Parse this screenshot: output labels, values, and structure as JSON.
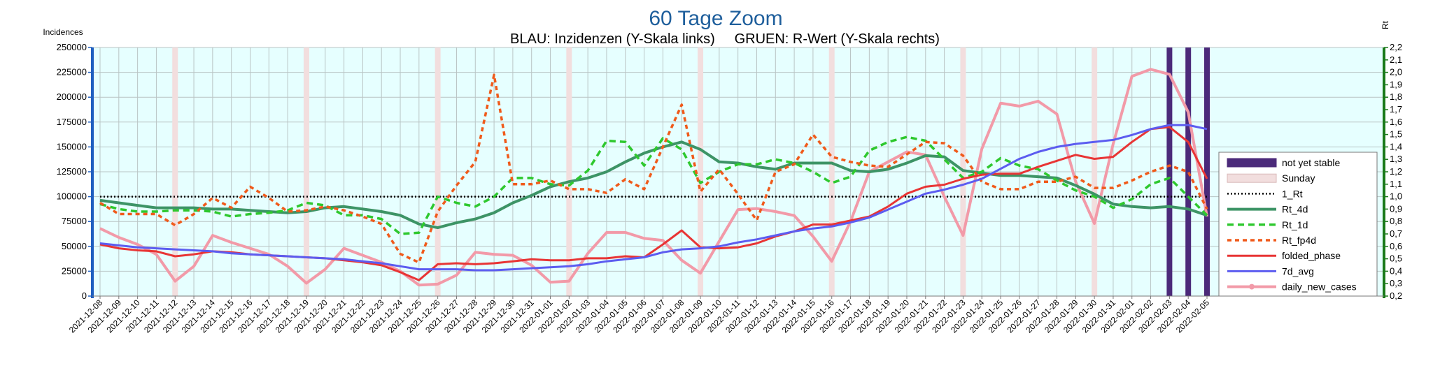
{
  "chart_data": {
    "type": "line",
    "title": "60 Tage Zoom",
    "subtitle": "BLAU: Inzidenzen (Y-Skala links)     GRUEN: R-Wert (Y-Skala rechts)",
    "ylabel_left": "Incidences",
    "ylabel_right": "Rt",
    "ylim_left": [
      0,
      250000
    ],
    "ylim_right": [
      0.2,
      2.2
    ],
    "left_ticks": [
      "0",
      "25000",
      "50000",
      "75000",
      "100000",
      "125000",
      "150000",
      "175000",
      "200000",
      "225000",
      "250000"
    ],
    "right_ticks": [
      "0,2",
      "0,3",
      "0,4",
      "0,5",
      "0,6",
      "0,7",
      "0,8",
      "0,9",
      "1,0",
      "1,1",
      "1,2",
      "1,3",
      "1,4",
      "1,5",
      "1,6",
      "1,7",
      "1,8",
      "1,9",
      "2,0",
      "2,1",
      "2,2"
    ],
    "grid": true,
    "legend_position": "right",
    "x": [
      "2021-12-08",
      "2021-12-09",
      "2021-12-10",
      "2021-12-11",
      "2021-12-12",
      "2021-12-13",
      "2021-12-14",
      "2021-12-15",
      "2021-12-16",
      "2021-12-17",
      "2021-12-18",
      "2021-12-19",
      "2021-12-20",
      "2021-12-21",
      "2021-12-22",
      "2021-12-23",
      "2021-12-24",
      "2021-12-25",
      "2021-12-26",
      "2021-12-27",
      "2021-12-28",
      "2021-12-29",
      "2021-12-30",
      "2021-12-31",
      "2022-01-01",
      "2022-01-02",
      "2022-01-03",
      "2022-01-04",
      "2022-01-05",
      "2022-01-06",
      "2022-01-07",
      "2022-01-08",
      "2022-01-09",
      "2022-01-10",
      "2022-01-11",
      "2022-01-12",
      "2022-01-13",
      "2022-01-14",
      "2022-01-15",
      "2022-01-16",
      "2022-01-17",
      "2022-01-18",
      "2022-01-19",
      "2022-01-20",
      "2022-01-21",
      "2022-01-22",
      "2022-01-23",
      "2022-01-24",
      "2022-01-25",
      "2022-01-26",
      "2022-01-27",
      "2022-01-28",
      "2022-01-29",
      "2022-01-30",
      "2022-01-31",
      "2022-02-01",
      "2022-02-02",
      "2022-02-03",
      "2022-02-04",
      "2022-02-05"
    ],
    "sundays": [
      "2021-12-12",
      "2021-12-19",
      "2021-12-26",
      "2022-01-02",
      "2022-01-09",
      "2022-01-16",
      "2022-01-23",
      "2022-01-30"
    ],
    "not_yet_stable": [
      "2022-02-03",
      "2022-02-04",
      "2022-02-05"
    ],
    "series": [
      {
        "name": "not yet stable",
        "kind": "bar",
        "color": "#4b2a7a"
      },
      {
        "name": "Sunday",
        "kind": "bar",
        "color": "#f2dede"
      },
      {
        "name": "1_Rt",
        "axis": "right",
        "color": "#000000",
        "dash": "2,3",
        "width": 2.5,
        "values": [
          1.0,
          1.0,
          1.0,
          1.0,
          1.0,
          1.0,
          1.0,
          1.0,
          1.0,
          1.0,
          1.0,
          1.0,
          1.0,
          1.0,
          1.0,
          1.0,
          1.0,
          1.0,
          1.0,
          1.0,
          1.0,
          1.0,
          1.0,
          1.0,
          1.0,
          1.0,
          1.0,
          1.0,
          1.0,
          1.0,
          1.0,
          1.0,
          1.0,
          1.0,
          1.0,
          1.0,
          1.0,
          1.0,
          1.0,
          1.0,
          1.0,
          1.0,
          1.0,
          1.0,
          1.0,
          1.0,
          1.0,
          1.0,
          1.0,
          1.0,
          1.0,
          1.0,
          1.0,
          1.0,
          1.0,
          1.0,
          1.0,
          1.0,
          1.0,
          1.0
        ]
      },
      {
        "name": "Rt_4d",
        "axis": "right",
        "color": "#3d9466",
        "dash": "",
        "width": 4,
        "values": [
          0.97,
          0.95,
          0.93,
          0.91,
          0.91,
          0.91,
          0.9,
          0.9,
          0.89,
          0.88,
          0.87,
          0.88,
          0.91,
          0.92,
          0.9,
          0.88,
          0.85,
          0.78,
          0.75,
          0.79,
          0.82,
          0.87,
          0.95,
          1.01,
          1.08,
          1.12,
          1.15,
          1.2,
          1.28,
          1.35,
          1.4,
          1.44,
          1.38,
          1.28,
          1.27,
          1.24,
          1.22,
          1.27,
          1.27,
          1.27,
          1.21,
          1.2,
          1.22,
          1.27,
          1.33,
          1.32,
          1.21,
          1.19,
          1.17,
          1.17,
          1.16,
          1.15,
          1.09,
          1.02,
          0.94,
          0.92,
          0.91,
          0.92,
          0.9,
          0.85
        ]
      },
      {
        "name": "Rt_1d",
        "axis": "right",
        "color": "#2ec82e",
        "dash": "9,6",
        "width": 3.5,
        "values": [
          0.94,
          0.9,
          0.88,
          0.88,
          0.89,
          0.89,
          0.88,
          0.84,
          0.86,
          0.87,
          0.89,
          0.95,
          0.93,
          0.85,
          0.85,
          0.82,
          0.7,
          0.71,
          1.0,
          0.95,
          0.92,
          1.0,
          1.15,
          1.15,
          1.1,
          1.09,
          1.21,
          1.45,
          1.44,
          1.25,
          1.47,
          1.38,
          1.11,
          1.2,
          1.26,
          1.26,
          1.3,
          1.27,
          1.2,
          1.11,
          1.16,
          1.37,
          1.44,
          1.48,
          1.45,
          1.3,
          1.15,
          1.2,
          1.31,
          1.25,
          1.22,
          1.13,
          1.05,
          1.0,
          0.91,
          0.98,
          1.1,
          1.15,
          1.0,
          0.85
        ]
      },
      {
        "name": "Rt_fp4d",
        "axis": "right",
        "color": "#f05a1a",
        "dash": "6,5",
        "width": 3.5,
        "values": [
          0.95,
          0.86,
          0.86,
          0.86,
          0.77,
          0.86,
          0.99,
          0.91,
          1.08,
          0.99,
          0.88,
          0.89,
          0.92,
          0.89,
          0.84,
          0.78,
          0.54,
          0.47,
          0.88,
          1.09,
          1.28,
          1.98,
          1.1,
          1.1,
          1.13,
          1.06,
          1.06,
          1.03,
          1.14,
          1.06,
          1.4,
          1.74,
          1.04,
          1.22,
          1.02,
          0.81,
          1.2,
          1.26,
          1.5,
          1.32,
          1.28,
          1.25,
          1.24,
          1.34,
          1.44,
          1.43,
          1.33,
          1.12,
          1.06,
          1.06,
          1.12,
          1.12,
          1.16,
          1.07,
          1.07,
          1.13,
          1.2,
          1.25,
          1.2,
          0.9
        ]
      },
      {
        "name": "folded_phase",
        "axis": "left",
        "color": "#e83535",
        "dash": "",
        "width": 3,
        "values": [
          52000,
          48000,
          46000,
          45000,
          40000,
          42000,
          45000,
          44000,
          42000,
          41000,
          40000,
          39000,
          38000,
          36000,
          34000,
          31000,
          24000,
          16000,
          32000,
          33000,
          32000,
          33000,
          35000,
          37000,
          36000,
          36000,
          38000,
          38000,
          40000,
          39000,
          52000,
          66000,
          49000,
          48000,
          49000,
          53000,
          60000,
          65000,
          72000,
          72000,
          76000,
          80000,
          90000,
          103000,
          110000,
          112000,
          118000,
          122000,
          123000,
          123000,
          130000,
          136000,
          142000,
          138000,
          140000,
          155000,
          168000,
          170000,
          155000,
          118000
        ]
      },
      {
        "name": "7d_avg",
        "axis": "left",
        "color": "#5c5cf0",
        "dash": "",
        "width": 3,
        "values": [
          53000,
          51000,
          49000,
          48000,
          47000,
          46000,
          45000,
          43000,
          42000,
          41000,
          40000,
          39000,
          38000,
          37000,
          35000,
          33000,
          30000,
          27000,
          27000,
          27000,
          26000,
          26000,
          27000,
          28000,
          29000,
          30000,
          32000,
          35000,
          37000,
          39000,
          44000,
          47000,
          48000,
          50000,
          54000,
          57000,
          61000,
          65000,
          68000,
          70000,
          74000,
          79000,
          87000,
          95000,
          103000,
          107000,
          112000,
          118000,
          128000,
          138000,
          145000,
          150000,
          153000,
          155000,
          157000,
          162000,
          168000,
          172000,
          172000,
          168000
        ]
      },
      {
        "name": "daily_new_cases",
        "axis": "left",
        "color": "#f29aa8",
        "dash": "",
        "width": 4,
        "values": [
          68000,
          59000,
          52000,
          42000,
          15000,
          30000,
          61000,
          54000,
          48000,
          42000,
          30000,
          13000,
          27000,
          48000,
          41000,
          34000,
          25000,
          11000,
          12000,
          21000,
          44000,
          42000,
          41000,
          31000,
          14000,
          15000,
          43000,
          64000,
          64000,
          58000,
          56000,
          36000,
          23000,
          55000,
          87000,
          88000,
          85000,
          81000,
          60000,
          35000,
          75000,
          125000,
          135000,
          145000,
          142000,
          100000,
          61000,
          148000,
          194000,
          191000,
          196000,
          183000,
          115000,
          73000,
          153000,
          221000,
          228000,
          223000,
          185000,
          80000
        ]
      }
    ]
  }
}
